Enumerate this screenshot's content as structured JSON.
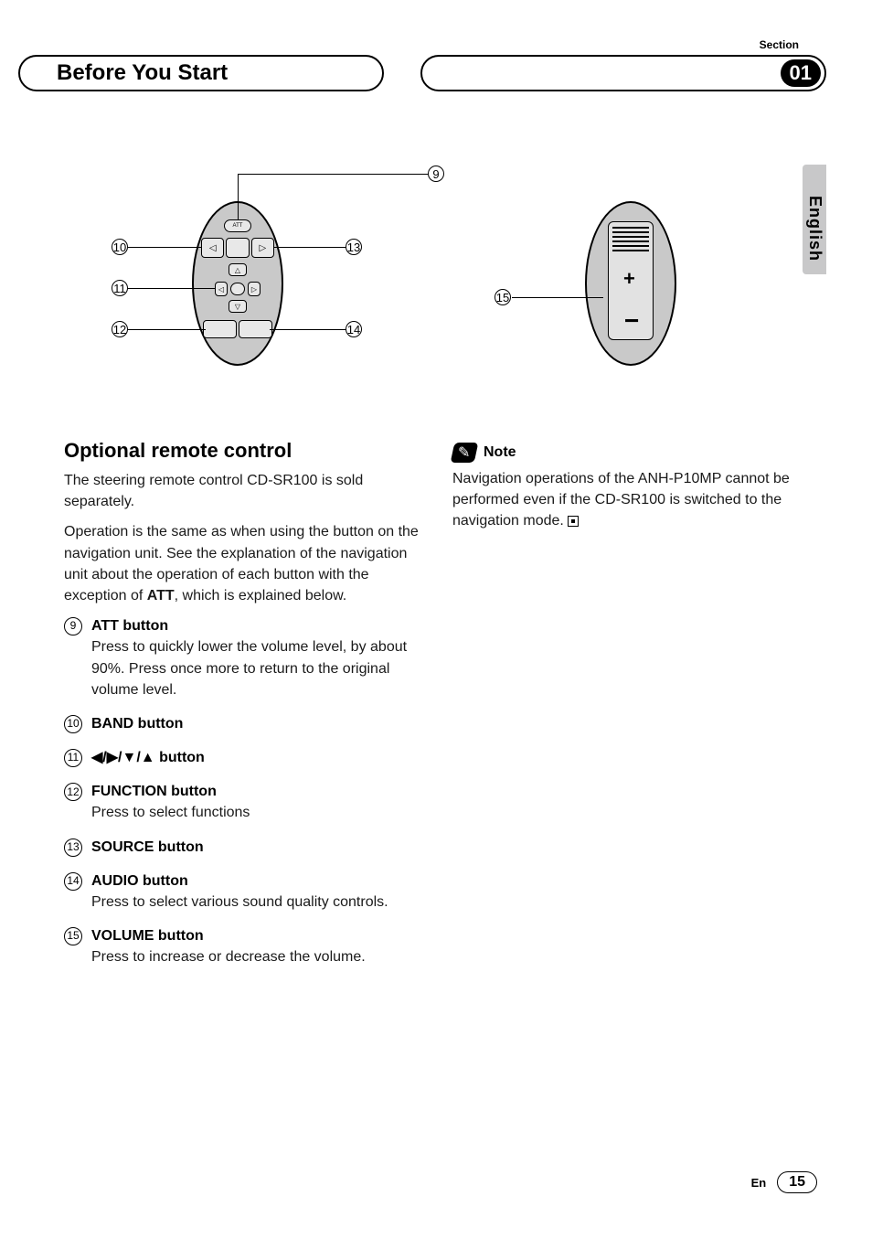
{
  "header": {
    "section_label": "Section",
    "title": "Before You Start",
    "page_badge": "01"
  },
  "language_tab": "English",
  "diagram_left": {
    "callouts": {
      "c9": "9",
      "c10": "10",
      "c11": "11",
      "c12": "12",
      "c13": "13",
      "c14": "14"
    },
    "att_label": "ATT"
  },
  "diagram_right": {
    "callouts": {
      "c15": "15"
    },
    "plus": "+",
    "minus": "−"
  },
  "left_col": {
    "heading": "Optional remote control",
    "para1": "The steering remote control CD-SR100 is sold separately.",
    "para2_a": "Operation is the same as when using the button on the navigation unit. See the explanation of the navigation unit about the operation of each button with the exception of ",
    "para2_bold": "ATT",
    "para2_b": ", which is explained below.",
    "items": [
      {
        "num": "9",
        "label": "ATT button",
        "desc": "Press to quickly lower the volume level, by about 90%. Press once more to return to the original volume level."
      },
      {
        "num": "10",
        "label": "BAND button",
        "desc": ""
      },
      {
        "num": "11",
        "label_arrows": "◀/▶/▼/▲ button",
        "desc": ""
      },
      {
        "num": "12",
        "label": "FUNCTION button",
        "desc": "Press to select functions"
      },
      {
        "num": "13",
        "label": "SOURCE button",
        "desc": ""
      },
      {
        "num": "14",
        "label": "AUDIO button",
        "desc": "Press to select various sound quality controls."
      },
      {
        "num": "15",
        "label": "VOLUME button",
        "desc": "Press to increase or decrease the volume."
      }
    ]
  },
  "right_col": {
    "note_label": "Note",
    "note_text": "Navigation operations of the ANH-P10MP cannot be performed even if the CD-SR100 is switched to the navigation mode."
  },
  "footer": {
    "lang": "En",
    "page": "15"
  },
  "colors": {
    "remote_fill": "#c9c9c9",
    "tab_fill": "#c8c8c9",
    "text": "#1a1a1a"
  }
}
